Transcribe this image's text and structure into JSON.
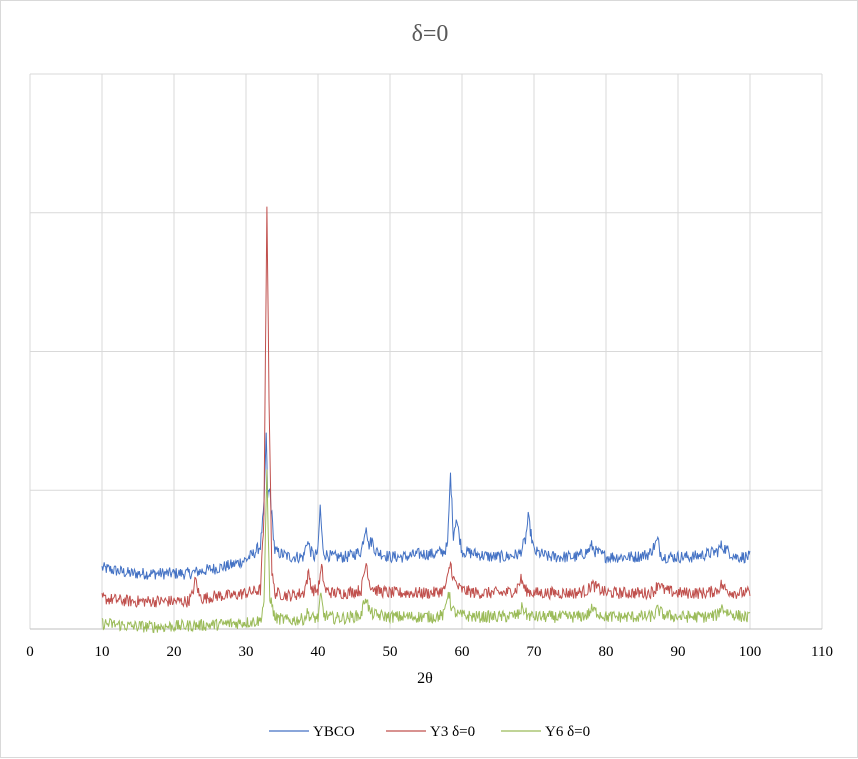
{
  "chart_data": {
    "type": "line",
    "title": "δ=0",
    "xlabel": "2θ",
    "ylabel": "",
    "xlim": [
      0,
      110
    ],
    "xticks": [
      0,
      10,
      20,
      30,
      40,
      50,
      60,
      70,
      80,
      90,
      100,
      110
    ],
    "ylim": [
      0,
      1
    ],
    "y_tick_labels_shown": false,
    "grid": true,
    "legend_position": "bottom",
    "series": [
      {
        "name": "YBCO",
        "color": "#4472C4",
        "x": [
          10,
          14,
          18,
          22,
          26,
          28,
          30,
          31,
          32,
          32.5,
          32.8,
          33.0,
          33.3,
          34,
          36,
          38,
          38.5,
          39,
          39.5,
          40,
          40.3,
          40.7,
          41,
          42,
          44,
          46,
          46.7,
          47,
          47.5,
          48,
          50,
          52,
          54,
          56,
          57.5,
          58,
          58.4,
          58.8,
          59.2,
          60,
          62,
          64,
          66,
          68,
          68.8,
          69.2,
          70,
          72,
          74,
          76,
          77.5,
          78,
          78.5,
          80,
          82,
          84,
          86,
          87.2,
          87.5,
          88,
          90,
          92,
          94,
          95.5,
          96,
          97,
          98,
          100
        ],
        "y": [
          0.11,
          0.1,
          0.1,
          0.1,
          0.11,
          0.115,
          0.125,
          0.135,
          0.15,
          0.22,
          0.35,
          0.24,
          0.25,
          0.14,
          0.13,
          0.13,
          0.16,
          0.14,
          0.13,
          0.14,
          0.22,
          0.14,
          0.135,
          0.13,
          0.13,
          0.14,
          0.19,
          0.15,
          0.16,
          0.14,
          0.13,
          0.13,
          0.135,
          0.135,
          0.14,
          0.15,
          0.28,
          0.17,
          0.2,
          0.14,
          0.135,
          0.13,
          0.13,
          0.135,
          0.16,
          0.2,
          0.14,
          0.13,
          0.13,
          0.13,
          0.14,
          0.15,
          0.14,
          0.13,
          0.13,
          0.13,
          0.135,
          0.16,
          0.14,
          0.13,
          0.13,
          0.13,
          0.135,
          0.14,
          0.15,
          0.14,
          0.13,
          0.13
        ]
      },
      {
        "name": "Y3 δ=0",
        "color": "#C0504D",
        "x": [
          10,
          14,
          18,
          22,
          22.5,
          23,
          23.5,
          24,
          26,
          28,
          30,
          32,
          32.5,
          32.9,
          33.2,
          33.6,
          34,
          36,
          38,
          38.7,
          39.2,
          40,
          40.5,
          41,
          42,
          44,
          46,
          46.7,
          47.2,
          48,
          50,
          52,
          54,
          56,
          57.5,
          58,
          58.4,
          58.8,
          59.5,
          60,
          62,
          64,
          66,
          67.5,
          68.2,
          68.8,
          70,
          72,
          74,
          76,
          77.5,
          78,
          80,
          82,
          84,
          86,
          86.8,
          87.3,
          88,
          90,
          92,
          94,
          95.5,
          96,
          96.7,
          98,
          100
        ],
        "y": [
          0.055,
          0.05,
          0.05,
          0.05,
          0.06,
          0.09,
          0.06,
          0.055,
          0.06,
          0.06,
          0.065,
          0.07,
          0.2,
          0.77,
          0.42,
          0.1,
          0.065,
          0.06,
          0.065,
          0.1,
          0.07,
          0.07,
          0.11,
          0.07,
          0.065,
          0.065,
          0.07,
          0.12,
          0.08,
          0.07,
          0.065,
          0.065,
          0.065,
          0.065,
          0.07,
          0.09,
          0.12,
          0.09,
          0.075,
          0.07,
          0.065,
          0.065,
          0.065,
          0.07,
          0.09,
          0.07,
          0.065,
          0.065,
          0.065,
          0.065,
          0.07,
          0.08,
          0.065,
          0.065,
          0.065,
          0.065,
          0.07,
          0.085,
          0.07,
          0.065,
          0.065,
          0.065,
          0.07,
          0.08,
          0.07,
          0.065,
          0.065
        ]
      },
      {
        "name": "Y6 δ=0",
        "color": "#9BBB59",
        "x": [
          10,
          12,
          14,
          18,
          22,
          26,
          30,
          32,
          32.5,
          32.9,
          33.3,
          34,
          36,
          38,
          38.6,
          39,
          40,
          40.4,
          40.8,
          42,
          44,
          46,
          46.6,
          47.2,
          48,
          50,
          52,
          54,
          56,
          57.5,
          58.1,
          58.6,
          59.5,
          62,
          64,
          66,
          67.8,
          68.4,
          69,
          70,
          72,
          74,
          76,
          77.4,
          78,
          80,
          82,
          84,
          86,
          86.7,
          87.2,
          88,
          90,
          92,
          94,
          95.5,
          96,
          96.8,
          98,
          100
        ],
        "y": [
          0.01,
          0.008,
          0.005,
          0.004,
          0.006,
          0.008,
          0.012,
          0.015,
          0.05,
          0.28,
          0.06,
          0.02,
          0.015,
          0.018,
          0.03,
          0.02,
          0.02,
          0.06,
          0.025,
          0.02,
          0.02,
          0.025,
          0.06,
          0.03,
          0.025,
          0.022,
          0.022,
          0.022,
          0.022,
          0.025,
          0.07,
          0.035,
          0.025,
          0.022,
          0.022,
          0.022,
          0.025,
          0.04,
          0.025,
          0.022,
          0.022,
          0.022,
          0.022,
          0.025,
          0.035,
          0.022,
          0.022,
          0.022,
          0.022,
          0.025,
          0.035,
          0.025,
          0.022,
          0.022,
          0.022,
          0.025,
          0.04,
          0.03,
          0.025,
          0.02
        ]
      }
    ]
  }
}
